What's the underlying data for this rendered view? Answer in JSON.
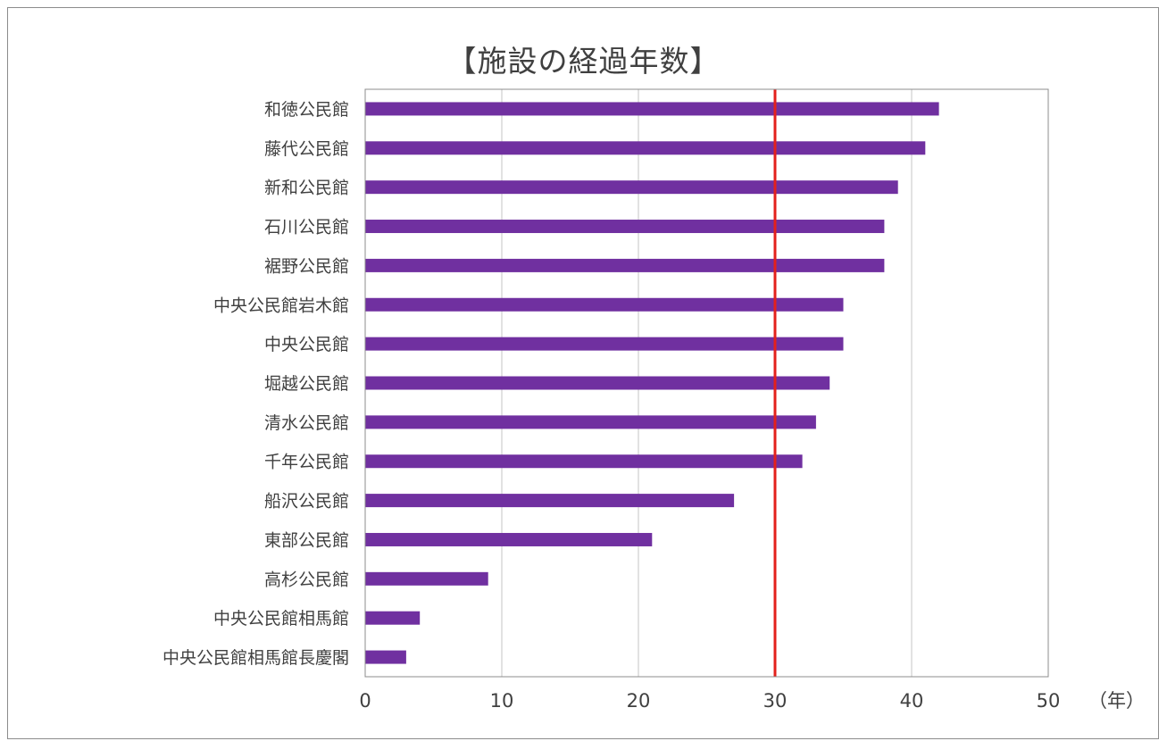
{
  "chart_data": {
    "type": "bar",
    "orientation": "horizontal",
    "title": "【施設の経過年数】",
    "x_unit_label": "（年）",
    "categories": [
      "和徳公民館",
      "藤代公民館",
      "新和公民館",
      "石川公民館",
      "裾野公民館",
      "中央公民館岩木館",
      "中央公民館",
      "堀越公民館",
      "清水公民館",
      "千年公民館",
      "船沢公民館",
      "東部公民館",
      "高杉公民館",
      "中央公民館相馬館",
      "中央公民館相馬館長慶閣"
    ],
    "values": [
      42,
      41,
      39,
      38,
      38,
      35,
      35,
      34,
      33,
      32,
      27,
      21,
      9,
      4,
      3
    ],
    "xlim": [
      0,
      50
    ],
    "xticks": [
      "0",
      "10",
      "20",
      "30",
      "40",
      "50"
    ],
    "reference_line": {
      "value": 30,
      "color": "#e3211c"
    },
    "bar_color": "#7030a0",
    "grid": true,
    "legend": "none"
  }
}
